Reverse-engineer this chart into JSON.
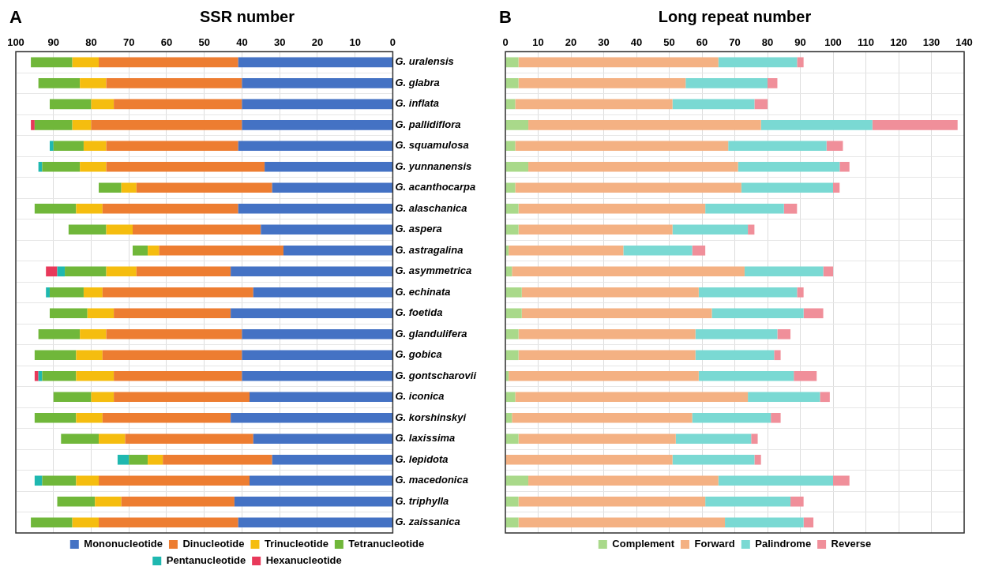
{
  "chart_data": [
    {
      "type": "bar",
      "orientation": "horizontal",
      "stacked": true,
      "title": "SSR number",
      "annotations": [
        "A"
      ],
      "categories": [
        "G. uralensis",
        "G. glabra",
        "G. inflata",
        "G. pallidiflora",
        "G. squamulosa",
        "G. yunnanensis",
        "G. acanthocarpa",
        "G. alaschanica",
        "G. aspera",
        "G. astragalina",
        "G. asymmetrica",
        "G. echinata",
        "G. foetida",
        "G. glandulifera",
        "G. gobica",
        "G. gontscharovii",
        "G. iconica",
        "G. korshinskyi",
        "G. laxissima",
        "G. lepidota",
        "G. macedonica",
        "G. triphylla",
        "G. zaissanica"
      ],
      "xlim": [
        100,
        0
      ],
      "xticks": [
        100,
        90,
        80,
        70,
        60,
        50,
        40,
        30,
        20,
        10,
        0
      ],
      "grid": true,
      "legend": "bottom",
      "series": [
        {
          "name": "Mononucleotide",
          "color": "#4472c4",
          "values": [
            41,
            40,
            40,
            40,
            41,
            34,
            32,
            41,
            35,
            29,
            43,
            37,
            43,
            40,
            40,
            40,
            38,
            43,
            37,
            32,
            38,
            42,
            41
          ]
        },
        {
          "name": "Dinucleotide",
          "color": "#ed7d31",
          "values": [
            37,
            36,
            34,
            40,
            35,
            42,
            36,
            36,
            34,
            33,
            25,
            40,
            31,
            36,
            37,
            34,
            36,
            34,
            34,
            29,
            40,
            30,
            37
          ]
        },
        {
          "name": "Trinucleotide",
          "color": "#f5bd0f",
          "values": [
            7,
            7,
            6,
            5,
            6,
            7,
            4,
            7,
            7,
            3,
            8,
            5,
            7,
            7,
            7,
            10,
            6,
            7,
            7,
            4,
            6,
            7,
            7
          ]
        },
        {
          "name": "Tetranucleotide",
          "color": "#70b73a",
          "values": [
            11,
            11,
            11,
            10,
            8,
            10,
            6,
            11,
            10,
            4,
            11,
            9,
            10,
            11,
            11,
            9,
            10,
            11,
            10,
            5,
            9,
            10,
            11
          ]
        },
        {
          "name": "Pentanucleotide",
          "color": "#1fb8b0",
          "values": [
            0,
            0,
            0,
            0,
            1,
            1,
            0,
            0,
            0,
            0,
            2,
            1,
            0,
            0,
            0,
            1,
            0,
            0,
            0,
            3,
            2,
            0,
            0
          ]
        },
        {
          "name": "Hexanucleotide",
          "color": "#e8395a",
          "values": [
            0,
            0,
            0,
            1,
            0,
            0,
            0,
            0,
            0,
            0,
            3,
            0,
            0,
            0,
            0,
            1,
            0,
            0,
            0,
            0,
            0,
            0,
            0
          ]
        }
      ]
    },
    {
      "type": "bar",
      "orientation": "horizontal",
      "stacked": true,
      "title": "Long repeat number",
      "annotations": [
        "B"
      ],
      "tick_labels": "x",
      "categories": [
        null,
        null,
        null,
        null,
        null,
        null,
        null,
        null,
        null,
        null,
        null,
        null,
        null,
        null,
        null,
        null,
        null,
        null,
        null,
        null,
        null,
        null,
        null
      ],
      "xlim": [
        0,
        140
      ],
      "xticks": [
        0,
        10,
        20,
        30,
        40,
        50,
        60,
        70,
        80,
        90,
        100,
        110,
        120,
        130,
        140
      ],
      "grid": true,
      "legend": "bottom",
      "series": [
        {
          "name": "Complement",
          "color": "#a9d98a",
          "values": [
            4,
            4,
            3,
            7,
            3,
            7,
            3,
            4,
            4,
            1,
            2,
            5,
            5,
            4,
            4,
            1,
            3,
            2,
            4,
            0,
            7,
            4,
            4
          ]
        },
        {
          "name": "Forward",
          "color": "#f4b183",
          "values": [
            61,
            51,
            48,
            71,
            65,
            64,
            69,
            57,
            47,
            35,
            71,
            54,
            58,
            54,
            54,
            58,
            71,
            55,
            48,
            51,
            58,
            57,
            63
          ]
        },
        {
          "name": "Palindrome",
          "color": "#7ad9d3",
          "values": [
            24,
            25,
            25,
            34,
            30,
            31,
            28,
            24,
            23,
            21,
            24,
            30,
            28,
            25,
            24,
            29,
            22,
            24,
            23,
            25,
            35,
            26,
            24
          ]
        },
        {
          "name": "Reverse",
          "color": "#f08f9a",
          "values": [
            2,
            3,
            4,
            26,
            5,
            3,
            2,
            4,
            2,
            4,
            3,
            2,
            6,
            4,
            2,
            7,
            3,
            3,
            2,
            2,
            5,
            4,
            3
          ]
        }
      ]
    }
  ]
}
